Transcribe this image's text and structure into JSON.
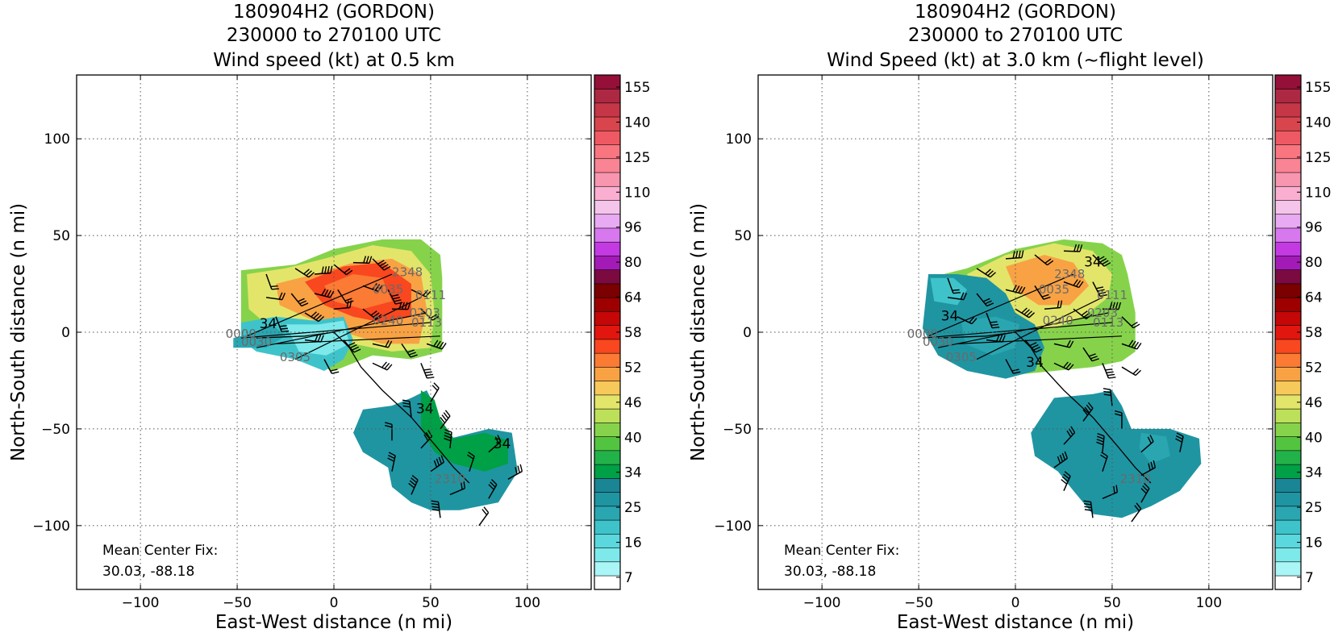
{
  "chart_data": [
    {
      "type": "heatmap",
      "title": [
        "180904H2 (GORDON)",
        "230000 to 270100 UTC",
        "Wind speed (kt) at 0.5 km"
      ],
      "xlabel": "East-West distance (n mi)",
      "ylabel": "North-South distance (n mi)",
      "xlim": [
        -133,
        133
      ],
      "ylim": [
        -133,
        133
      ],
      "xticks": [
        -100,
        -50,
        0,
        50,
        100
      ],
      "yticks": [
        -100,
        -50,
        0,
        50,
        100
      ],
      "grid": true,
      "annotation": [
        "Mean Center Fix:",
        "30.03, -88.18"
      ],
      "contour_labels": [
        {
          "text": "34",
          "x": -34,
          "y": 2,
          "style": "dark"
        },
        {
          "text": "34",
          "x": 47,
          "y": -42,
          "style": "dark"
        },
        {
          "text": "34",
          "x": 87,
          "y": -60,
          "style": "dark"
        },
        {
          "text": "2348",
          "x": 38,
          "y": 29,
          "style": "grey"
        },
        {
          "text": "0035",
          "x": 28,
          "y": 20,
          "style": "grey"
        },
        {
          "text": "0111",
          "x": 50,
          "y": 17,
          "style": "grey"
        },
        {
          "text": "0203",
          "x": 47,
          "y": 8,
          "style": "grey"
        },
        {
          "text": "0240",
          "x": 28,
          "y": 4,
          "style": "grey"
        },
        {
          "text": "0113",
          "x": 48,
          "y": 3,
          "style": "grey"
        },
        {
          "text": "0000",
          "x": -48,
          "y": -3,
          "style": "grey"
        },
        {
          "text": "0030",
          "x": -40,
          "y": -7,
          "style": "grey"
        },
        {
          "text": "0305",
          "x": -20,
          "y": -15,
          "style": "grey"
        },
        {
          "text": "2310",
          "x": 60,
          "y": -78,
          "style": "grey"
        }
      ]
    },
    {
      "type": "heatmap",
      "title": [
        "180904H2 (GORDON)",
        "230000 to 270100 UTC",
        "Wind Speed (kt) at 3.0 km (~flight level)"
      ],
      "xlabel": "East-West distance (n mi)",
      "ylabel": "North-South distance (n mi)",
      "xlim": [
        -133,
        133
      ],
      "ylim": [
        -133,
        133
      ],
      "xticks": [
        -100,
        -50,
        0,
        50,
        100
      ],
      "yticks": [
        -100,
        -50,
        0,
        50,
        100
      ],
      "grid": true,
      "annotation": [
        "Mean Center Fix:",
        "30.03, -88.18"
      ],
      "contour_labels": [
        {
          "text": "34",
          "x": 40,
          "y": 34,
          "style": "dark"
        },
        {
          "text": "34",
          "x": -34,
          "y": 6,
          "style": "dark"
        },
        {
          "text": "34",
          "x": 10,
          "y": -18,
          "style": "dark"
        },
        {
          "text": "2348",
          "x": 28,
          "y": 28,
          "style": "grey"
        },
        {
          "text": "0035",
          "x": 20,
          "y": 20,
          "style": "grey"
        },
        {
          "text": "0111",
          "x": 50,
          "y": 17,
          "style": "grey"
        },
        {
          "text": "0203",
          "x": 45,
          "y": 8,
          "style": "grey"
        },
        {
          "text": "0240",
          "x": 22,
          "y": 4,
          "style": "grey"
        },
        {
          "text": "0113",
          "x": 48,
          "y": 3,
          "style": "grey"
        },
        {
          "text": "0000",
          "x": -48,
          "y": -3,
          "style": "grey"
        },
        {
          "text": "0030",
          "x": -40,
          "y": -7,
          "style": "grey"
        },
        {
          "text": "0305",
          "x": -28,
          "y": -15,
          "style": "grey"
        },
        {
          "text": "2310",
          "x": 62,
          "y": -78,
          "style": "grey"
        }
      ]
    }
  ],
  "colorbar": {
    "labels": [
      "155",
      "140",
      "125",
      "110",
      "96",
      "80",
      "64",
      "58",
      "52",
      "46",
      "40",
      "34",
      "25",
      "16",
      "7"
    ],
    "colors": [
      "#ffffff",
      "#aaf5f5",
      "#7de9ea",
      "#5ad8dd",
      "#3fc3ca",
      "#2aa6b1",
      "#1f95a2",
      "#1a8595",
      "#00a046",
      "#22b24a",
      "#53c43f",
      "#86d34b",
      "#bde05a",
      "#e3e56a",
      "#f6c95a",
      "#f8a244",
      "#fb7a34",
      "#f9471f",
      "#e3160f",
      "#c50707",
      "#9e0000",
      "#7b0000",
      "#7a0a40",
      "#a41ab7",
      "#c33ae3",
      "#d878ee",
      "#e8aaf2",
      "#f4c4ea",
      "#faaed0",
      "#f896b0",
      "#f98494",
      "#f97681",
      "#ef5963",
      "#d9454d",
      "#c53646",
      "#ad2842",
      "#951039"
    ]
  }
}
